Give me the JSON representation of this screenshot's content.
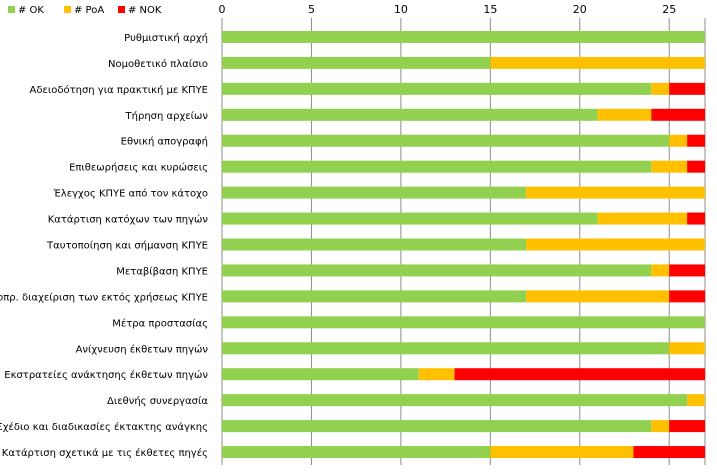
{
  "chart_data": {
    "type": "bar",
    "orientation": "horizontal",
    "stacked": true,
    "legend_position": "top-left",
    "grid": true,
    "xlim": [
      0,
      27
    ],
    "x_ticks": [
      0,
      5,
      10,
      15,
      20,
      25
    ],
    "x_tick_labels": [
      "0",
      "5",
      "10",
      "15",
      "20",
      "25"
    ],
    "x_axis_position": "top",
    "categories": [
      "Ρυθμιστική αρχή",
      "Νομοθετικό πλαίσιο",
      "Αδειοδότηση για πρακτική με ΚΠΥΕ",
      "Τήρηση αρχείων",
      "Εθνική απογραφή",
      "Επιθεωρήσεις και κυρώσεις",
      "Έλεγχος ΚΠΥΕ από τον κάτοχο",
      "Κατάρτιση κατόχων των πηγών",
      "Ταυτοποίηση και σήμανση ΚΠΥΕ",
      "Μεταβίβαση ΚΠΥΕ",
      "Μακροπρ. διαχείριση των εκτός χρήσεως ΚΠΥΕ",
      "Μέτρα προστασίας",
      "Ανίχνευση έκθετων πηγών",
      "Εκστρατείες ανάκτησης έκθετων πηγών",
      "Διεθνής συνεργασία",
      "Σχέδιο και διαδικασίες έκτακτης ανάγκης",
      "Κατάρτιση σχετικά με τις έκθετες πηγές"
    ],
    "series": [
      {
        "name": "# OK",
        "color": "#92d050",
        "values": [
          27,
          15,
          24,
          21,
          25,
          24,
          17,
          21,
          17,
          24,
          17,
          27,
          25,
          11,
          26,
          24,
          15
        ]
      },
      {
        "name": "# PoA",
        "color": "#ffc000",
        "values": [
          0,
          12,
          1,
          3,
          1,
          2,
          10,
          5,
          10,
          1,
          8,
          0,
          2,
          2,
          1,
          1,
          8
        ]
      },
      {
        "name": "# NOK",
        "color": "#ff0000",
        "values": [
          0,
          0,
          2,
          3,
          1,
          1,
          0,
          1,
          0,
          2,
          2,
          0,
          0,
          14,
          0,
          2,
          4
        ]
      }
    ]
  }
}
